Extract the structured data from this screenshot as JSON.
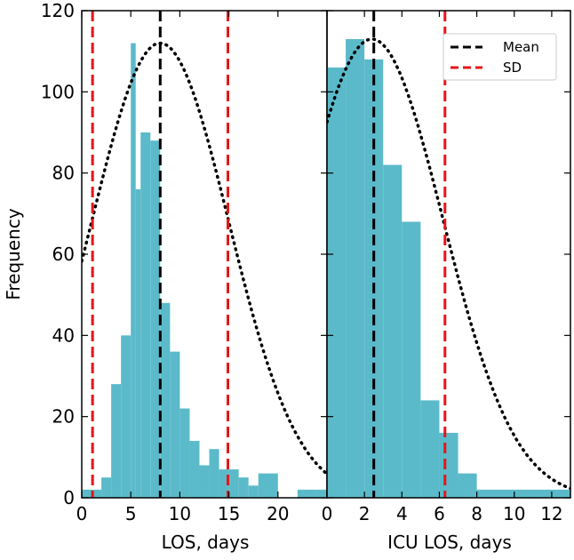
{
  "chart_data": {
    "type": "histogram",
    "ylabel": "Frequency",
    "ylim": [
      0,
      120
    ],
    "yticks": [
      0,
      20,
      40,
      60,
      80,
      100,
      120
    ],
    "colors": {
      "bar": "#5bbac9",
      "mean": "#000000",
      "sd": "#e8141a",
      "curve": "#000000"
    },
    "legend": {
      "position": "top-right",
      "entries": [
        {
          "name": "Mean",
          "style": "black-dashed"
        },
        {
          "name": "SD",
          "style": "red-dashed"
        }
      ]
    },
    "panels": [
      {
        "xlabel": "LOS, days",
        "xlim": [
          0,
          25
        ],
        "xticks": [
          0,
          5,
          10,
          15,
          20
        ],
        "bins": [
          [
            0,
            1,
            2
          ],
          [
            1,
            2,
            2
          ],
          [
            2,
            3,
            5
          ],
          [
            3,
            4,
            28
          ],
          [
            4,
            5,
            40
          ],
          [
            5,
            5.5,
            112
          ],
          [
            5.5,
            6,
            76
          ],
          [
            6,
            7,
            90
          ],
          [
            7,
            8,
            88
          ],
          [
            8,
            9,
            48
          ],
          [
            9,
            10,
            36
          ],
          [
            10,
            11,
            22
          ],
          [
            11,
            12,
            14
          ],
          [
            12,
            13,
            8
          ],
          [
            13,
            14,
            12
          ],
          [
            14,
            15,
            7
          ],
          [
            15,
            16,
            7
          ],
          [
            16,
            17,
            5
          ],
          [
            17,
            18,
            3
          ],
          [
            18,
            20,
            6
          ],
          [
            20,
            22,
            0
          ],
          [
            22,
            24,
            2
          ],
          [
            24,
            25,
            2
          ]
        ],
        "mean": 8,
        "sd_lines": [
          1.1,
          14.9
        ],
        "curve": {
          "mu": 8,
          "sigma": 7,
          "peak": 112
        }
      },
      {
        "xlabel": "ICU LOS, days",
        "xlim": [
          0,
          13
        ],
        "xticks": [
          0,
          2,
          4,
          6,
          8,
          10,
          12
        ],
        "bins": [
          [
            0,
            1,
            106
          ],
          [
            1,
            2,
            113
          ],
          [
            2,
            3,
            108
          ],
          [
            3,
            4,
            82
          ],
          [
            4,
            5,
            68
          ],
          [
            5,
            6,
            24
          ],
          [
            6,
            7,
            16
          ],
          [
            7,
            8,
            6
          ],
          [
            8,
            13,
            2
          ]
        ],
        "mean": 2.5,
        "sd_lines": [
          6.3
        ],
        "curve": {
          "mu": 2.4,
          "sigma": 3.8,
          "peak": 113
        }
      }
    ]
  }
}
